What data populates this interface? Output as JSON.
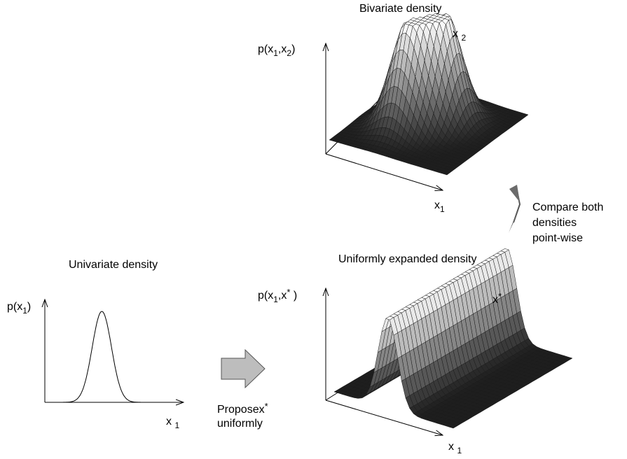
{
  "bivariate": {
    "title": "Bivariate density",
    "zlabel": {
      "prefix": "p(x",
      "sub1": "1",
      "mid": ",x",
      "sub2": "2",
      "suffix": ")"
    },
    "xlabel": {
      "base": "x",
      "sub": "1"
    },
    "ylabel": {
      "base": "x",
      "sub": "2"
    },
    "surface": {
      "peaks": [
        {
          "x1": 0.38,
          "x2": 0.42,
          "height": 0.95,
          "spread": 0.13
        },
        {
          "x1": 0.55,
          "x2": 0.62,
          "height": 1.0,
          "spread": 0.13
        }
      ]
    }
  },
  "compare": {
    "line1": "Compare both",
    "line2": "densities",
    "line3": "point-wise"
  },
  "univariate": {
    "title": "Univariate density",
    "ylabel": {
      "prefix": "p(x",
      "sub": "1",
      "suffix": ")"
    },
    "xlabel": {
      "base": "x",
      "sub": "1"
    },
    "curve": {
      "mean": 0.45,
      "sd": 0.08,
      "peak": 1.0
    }
  },
  "propose": {
    "line1": "Proposex",
    "star": "*",
    "line2": "uniformly"
  },
  "expanded": {
    "title": "Uniformly expanded density",
    "zlabel": {
      "prefix": "p(x",
      "sub1": "1",
      "mid": ",x",
      "sup": "*",
      "suffix": " )"
    },
    "xlabel": {
      "base": "x",
      "sub": "1"
    },
    "ylabel": {
      "base": "x",
      "sup": "*"
    }
  },
  "colors": {
    "line": "#000000",
    "arrow_fill": "#bdbdbd",
    "compare_arrow": "#6b6b6b",
    "surface_light": "#ffffff",
    "surface_dark": "#202020"
  }
}
